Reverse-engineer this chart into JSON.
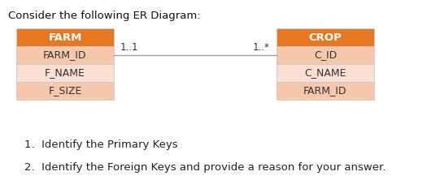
{
  "title": "Consider the following ER Diagram:",
  "title_fontsize": 9.5,
  "bg_color": "#ffffff",
  "header_color": "#E87722",
  "row_color_1": "#F5C8AC",
  "row_color_2": "#FAE0D4",
  "farm_header": "FARM",
  "farm_rows": [
    "FARM_ID",
    "F_NAME",
    "F_SIZE"
  ],
  "crop_header": "CROP",
  "crop_rows": [
    "C_ID",
    "C_NAME",
    "FARM_ID"
  ],
  "line_label_left": "1..1",
  "line_label_right": "1..*",
  "question1": "1.  Identify the Primary Keys",
  "question2": "2.  Identify the Foreign Keys and provide a reason for your answer.",
  "q_fontsize": 9.5,
  "header_fontsize": 9.5,
  "cell_fontsize": 9.0,
  "label_fontsize": 8.5,
  "edge_color": "#cccccc"
}
